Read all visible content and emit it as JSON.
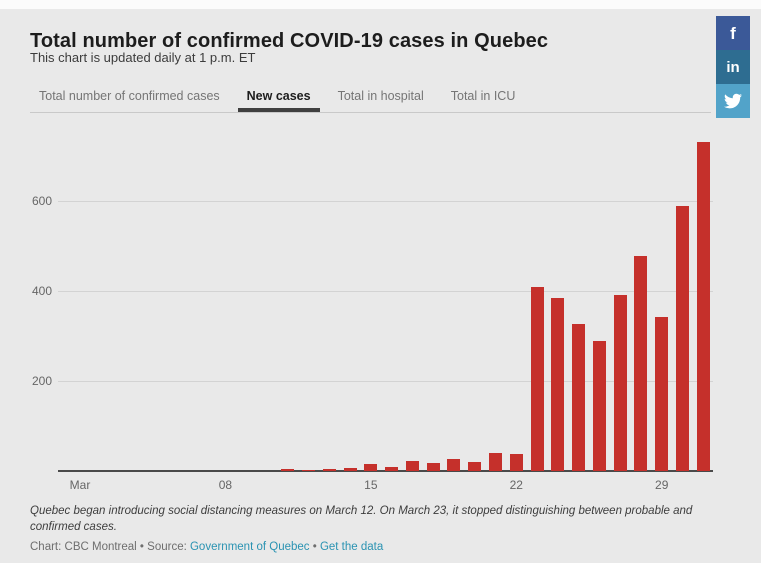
{
  "header": {
    "title": "Total number of confirmed COVID-19 cases in Quebec",
    "subtitle": "This chart is updated daily at 1 p.m. ET"
  },
  "tabs": [
    {
      "label": "Total number of confirmed cases",
      "active": false
    },
    {
      "label": "New cases",
      "active": true
    },
    {
      "label": "Total in hospital",
      "active": false
    },
    {
      "label": "Total in ICU",
      "active": false
    }
  ],
  "chart_data": {
    "type": "bar",
    "title": "New cases",
    "dates": [
      "Mar 1",
      "Mar 2",
      "Mar 3",
      "Mar 4",
      "Mar 5",
      "Mar 6",
      "Mar 7",
      "Mar 8",
      "Mar 9",
      "Mar 10",
      "Mar 11",
      "Mar 12",
      "Mar 13",
      "Mar 14",
      "Mar 15",
      "Mar 16",
      "Mar 17",
      "Mar 18",
      "Mar 19",
      "Mar 20",
      "Mar 21",
      "Mar 22",
      "Mar 23",
      "Mar 24",
      "Mar 25",
      "Mar 26",
      "Mar 27",
      "Mar 28",
      "Mar 29",
      "Mar 30",
      "Mar 31"
    ],
    "values": [
      0,
      0,
      0,
      0,
      0,
      0,
      0,
      0,
      0,
      0,
      4,
      3,
      4,
      6,
      16,
      10,
      22,
      18,
      26,
      20,
      40,
      37,
      409,
      385,
      326,
      290,
      392,
      477,
      342,
      590,
      732
    ],
    "y_ticks": [
      200,
      400,
      600
    ],
    "ylim": [
      0,
      750
    ],
    "x_tick_labels": [
      {
        "day": 1,
        "label": "Mar"
      },
      {
        "day": 8,
        "label": "08"
      },
      {
        "day": 15,
        "label": "15"
      },
      {
        "day": 22,
        "label": "22"
      },
      {
        "day": 29,
        "label": "29"
      }
    ],
    "bar_color": "#c5302b",
    "grid": "horizontal-only",
    "legend": "none"
  },
  "footer": {
    "note": "Quebec began introducing social distancing measures on March 12. On March 23, it stopped distinguishing between probable and confirmed cases.",
    "credit_chart": "Chart: CBC Montreal",
    "credit_sep1": " • ",
    "credit_source_label": "Source: ",
    "source_link": "Government of Quebec",
    "credit_sep2": " • ",
    "data_link": "Get the data",
    "link_color": "#2a93b2"
  },
  "share": {
    "facebook": {
      "label": "f",
      "color": "#3b5998"
    },
    "linkedin": {
      "label": "in",
      "color": "#2e6d91"
    },
    "twitter": {
      "icon": "twitter-bird",
      "color": "#52a3c9"
    }
  }
}
